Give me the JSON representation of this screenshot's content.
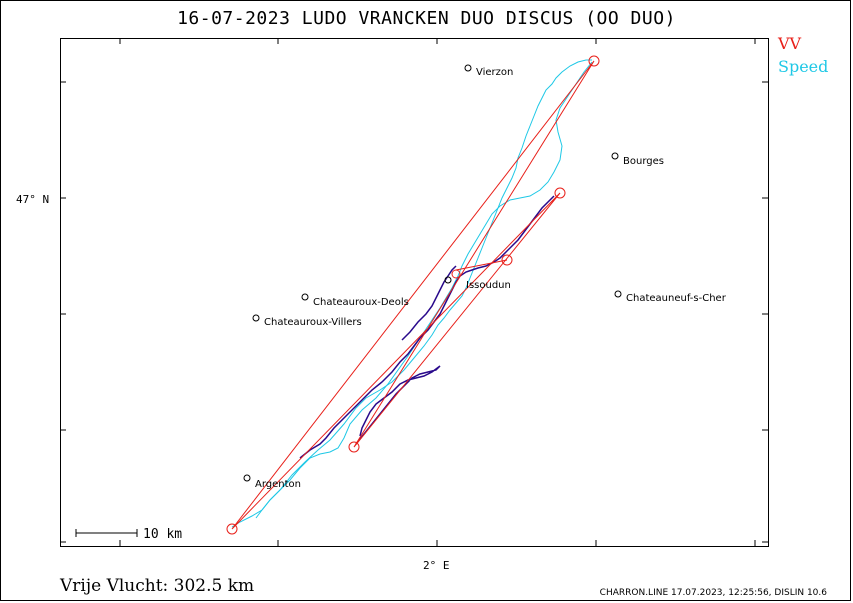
{
  "header": {
    "title": "16-07-2023   LUDO VRANCKEN   DUO DISCUS (OO DUO)"
  },
  "legend": [
    {
      "label": "VV",
      "color": "#e8201a"
    },
    {
      "label": "Speed",
      "color": "#1ec8e6"
    }
  ],
  "axes": {
    "lat_label": "47° N",
    "lon_label": "2° E"
  },
  "places": [
    {
      "name": "Vierzon"
    },
    {
      "name": "Bourges"
    },
    {
      "name": "Issoudun"
    },
    {
      "name": "Chateauroux-Deols"
    },
    {
      "name": "Chateauroux-Villers"
    },
    {
      "name": "Chateauneuf-s-Cher"
    },
    {
      "name": "Argenton"
    }
  ],
  "scale": {
    "label": "10 km"
  },
  "footer": {
    "distance": "Vrije Vlucht:  302.5 km",
    "source": "CHARRON.LINE 17.07.2023, 12:25:56, DISLIN 10.6"
  },
  "colors": {
    "task": "#e8201a",
    "track_speed": "#1ec8e6",
    "track_climb": "#2a0a8c"
  }
}
